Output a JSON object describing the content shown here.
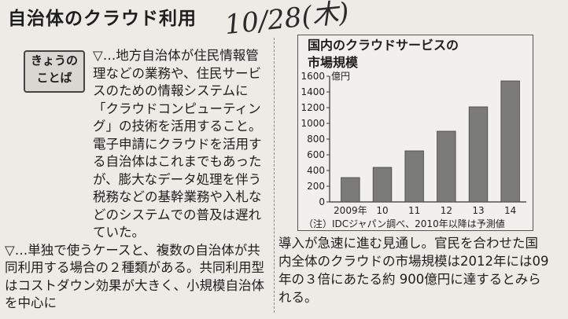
{
  "headline": "自治体のクラウド利用",
  "handwritten_date": "10/28(木)",
  "badge": {
    "line1": "きょうの",
    "line2": "ことば"
  },
  "left_paragraphs": [
    "▽…地方自治体が住民情報管理などの業務や、住民サービスのための情報システムに「クラウドコンピューティング」の技術を活用すること。電子申請にクラウドを活用する自治体はこれまでもあったが、膨大なデータ処理を伴う税務などの基幹業務や入札などのシステムでの普及は遅れていた。",
    "▽…単独で使うケースと、複数の自治体が共同利用する場合の２種類がある。共同利用型はコストダウン効果が大きく、小規模自治体を中心に"
  ],
  "right_paragraph": "導入が急速に進む見通し。官民を合わせた国内全体のクラウドの市場規模は2012年には09年の３倍にあたる約 900億円に達するとみられる。",
  "chart_data": {
    "type": "bar",
    "title_line1": "国内のクラウドサービスの",
    "title_line2": "市場規模",
    "unit_label": "億円",
    "categories": [
      "2009年",
      "10",
      "11",
      "12",
      "13",
      "14"
    ],
    "values": [
      310,
      440,
      650,
      900,
      1210,
      1540
    ],
    "ylim": [
      0,
      1600
    ],
    "yticks": [
      0,
      200,
      400,
      600,
      800,
      1000,
      1200,
      1400,
      1600
    ],
    "bar_color": "#7a7a78",
    "source": "（注）IDCジャパン調べ、2010年以降は予測値"
  }
}
